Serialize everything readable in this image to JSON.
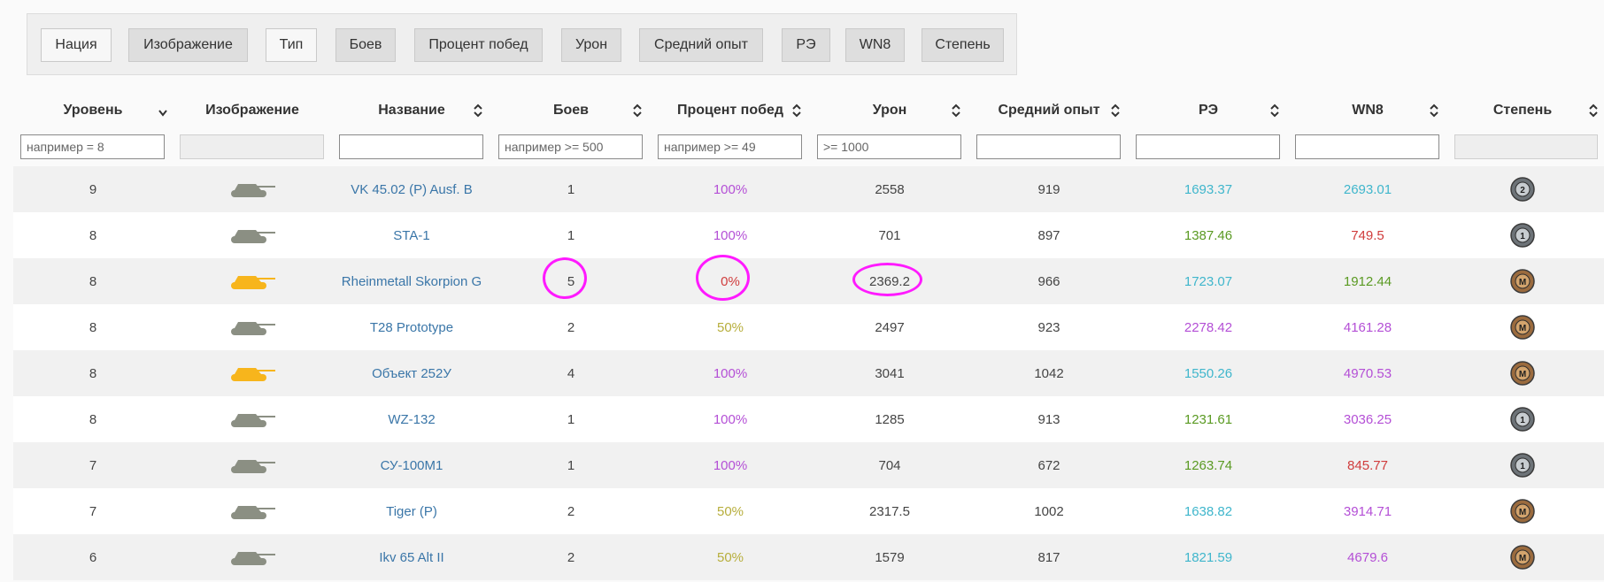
{
  "toggles": [
    {
      "label": "Нация",
      "on": true
    },
    {
      "label": "Изображение",
      "on": false
    },
    {
      "label": "Тип",
      "on": true
    },
    {
      "label": "Боев",
      "on": false
    },
    {
      "label": "Процент побед",
      "on": false
    },
    {
      "label": "Урон",
      "on": false
    },
    {
      "label": "Средний опыт",
      "on": false
    },
    {
      "label": "РЭ",
      "on": false
    },
    {
      "label": "WN8",
      "on": false
    },
    {
      "label": "Степень",
      "on": false
    }
  ],
  "columns": {
    "level": "Уровень",
    "image": "Изображение",
    "name": "Название",
    "battles": "Боев",
    "winrate": "Процент побед",
    "damage": "Урон",
    "xp": "Средний опыт",
    "re": "РЭ",
    "wn8": "WN8",
    "mastery": "Степень"
  },
  "filters": {
    "level": "например = 8",
    "battles": "например >= 500",
    "winrate": "например >= 49",
    "damage": ">= 1000"
  },
  "colors": {
    "purple": "#b44fd6",
    "teal": "#3fb6cc",
    "green": "#5a9a22",
    "red": "#d03c3c",
    "olive": "#b7ae3c",
    "link": "#3a76a8",
    "tank_grey": "#8b8f83",
    "tank_gold": "#f7b51c",
    "highlight": "#ff1aff"
  },
  "rows": [
    {
      "level": "9",
      "tank": "grey",
      "name": "VK 45.02 (P) Ausf. B",
      "battles": "1",
      "winrate": "100%",
      "wr_color": "purple",
      "damage": "2558",
      "xp": "919",
      "re": "1693.37",
      "re_color": "teal",
      "wn8": "2693.01",
      "wn8_color": "teal",
      "mastery": "2-icon"
    },
    {
      "level": "8",
      "tank": "grey",
      "name": "STA-1",
      "battles": "1",
      "winrate": "100%",
      "wr_color": "purple",
      "damage": "701",
      "xp": "897",
      "re": "1387.46",
      "re_color": "green",
      "wn8": "749.5",
      "wn8_color": "red",
      "mastery": "1-icon"
    },
    {
      "level": "8",
      "tank": "gold",
      "name": "Rheinmetall Skorpion G",
      "battles": "5",
      "winrate": "0%",
      "wr_color": "red",
      "damage": "2369.2",
      "xp": "966",
      "re": "1723.07",
      "re_color": "teal",
      "wn8": "1912.44",
      "wn8_color": "green",
      "mastery": "m-icon"
    },
    {
      "level": "8",
      "tank": "grey",
      "name": "T28 Prototype",
      "battles": "2",
      "winrate": "50%",
      "wr_color": "olive",
      "damage": "2497",
      "xp": "923",
      "re": "2278.42",
      "re_color": "purple",
      "wn8": "4161.28",
      "wn8_color": "purple",
      "mastery": "m-icon"
    },
    {
      "level": "8",
      "tank": "gold",
      "name": "Объект 252У",
      "battles": "4",
      "winrate": "100%",
      "wr_color": "purple",
      "damage": "3041",
      "xp": "1042",
      "re": "1550.26",
      "re_color": "teal",
      "wn8": "4970.53",
      "wn8_color": "purple",
      "mastery": "m-icon"
    },
    {
      "level": "8",
      "tank": "grey",
      "name": "WZ-132",
      "battles": "1",
      "winrate": "100%",
      "wr_color": "purple",
      "damage": "1285",
      "xp": "913",
      "re": "1231.61",
      "re_color": "green",
      "wn8": "3036.25",
      "wn8_color": "purple",
      "mastery": "1-icon"
    },
    {
      "level": "7",
      "tank": "grey",
      "name": "СУ-100М1",
      "battles": "1",
      "winrate": "100%",
      "wr_color": "purple",
      "damage": "704",
      "xp": "672",
      "re": "1263.74",
      "re_color": "green",
      "wn8": "845.77",
      "wn8_color": "red",
      "mastery": "1-icon"
    },
    {
      "level": "7",
      "tank": "grey",
      "name": "Tiger (P)",
      "battles": "2",
      "winrate": "50%",
      "wr_color": "olive",
      "damage": "2317.5",
      "xp": "1002",
      "re": "1638.82",
      "re_color": "teal",
      "wn8": "3914.71",
      "wn8_color": "purple",
      "mastery": "m-icon"
    },
    {
      "level": "6",
      "tank": "grey",
      "name": "Ikv 65 Alt II",
      "battles": "2",
      "winrate": "50%",
      "wr_color": "olive",
      "damage": "1579",
      "xp": "817",
      "re": "1821.59",
      "re_color": "teal",
      "wn8": "4679.6",
      "wn8_color": "purple",
      "mastery": "m-icon"
    }
  ],
  "mastery_labels": {
    "1-icon": "1",
    "2-icon": "2",
    "m-icon": "M"
  }
}
